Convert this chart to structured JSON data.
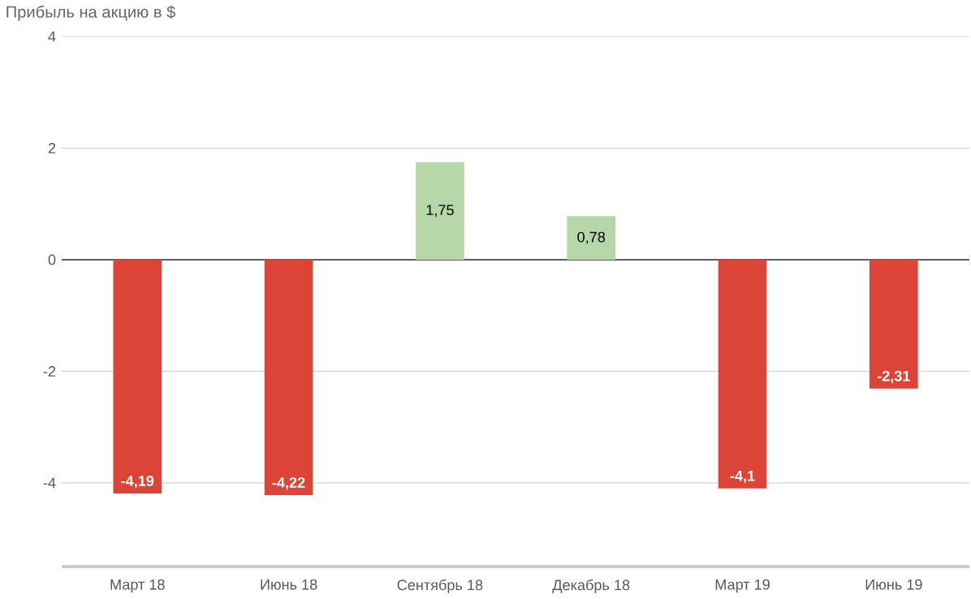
{
  "chart_data": {
    "type": "bar",
    "title": "Прибыль на акцию в $",
    "categories": [
      "Март 18",
      "Июнь 18",
      "Сентябрь 18",
      "Декабрь 18",
      "Март 19",
      "Июнь 19"
    ],
    "values": [
      -4.19,
      -4.22,
      1.75,
      0.78,
      -4.1,
      -2.31
    ],
    "value_labels": [
      "-4,19",
      "-4,22",
      "1,75",
      "0,78",
      "-4,1",
      "-2,31"
    ],
    "colors": [
      "#db4437",
      "#db4437",
      "#b6d7a8",
      "#b6d7a8",
      "#db4437",
      "#db4437"
    ],
    "ylim": [
      -5.5,
      4
    ],
    "yticks": [
      -4,
      -2,
      0,
      2,
      4
    ],
    "grid": "y",
    "ref_lines": [
      {
        "axis": "y",
        "value": 0,
        "color": "#333333"
      }
    ]
  }
}
